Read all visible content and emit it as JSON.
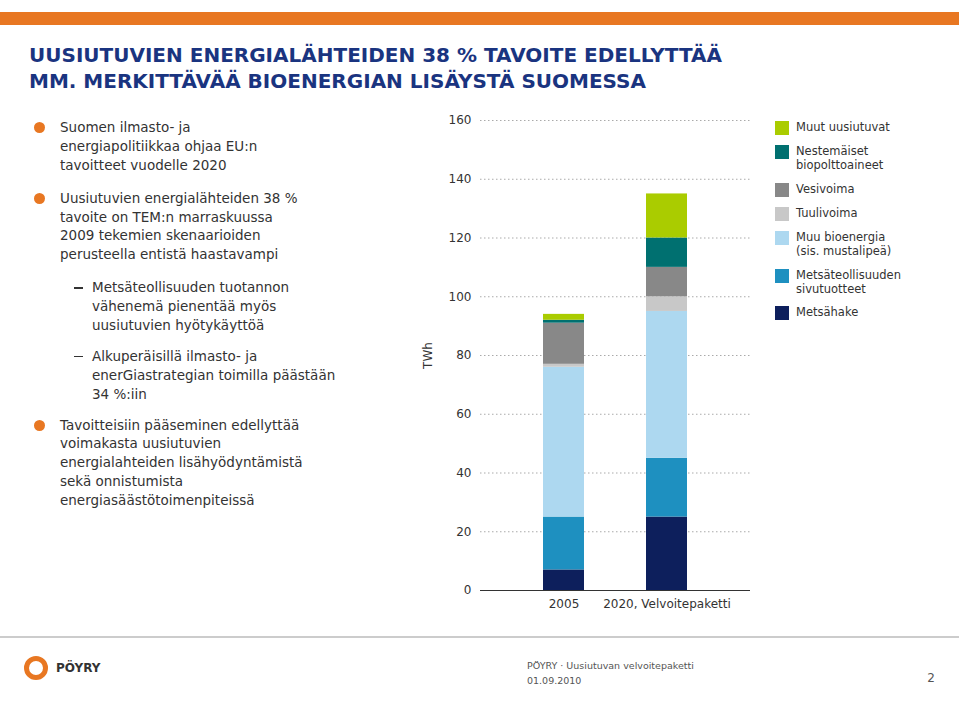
{
  "chart_data": {
    "type": "bar",
    "stacked": true,
    "title": "UUSIUTUVIEN ENERGIALÄHTEIDEN 38 % TAVOITE EDELLYTTÄÄ\nMM. MERKITTÄVÄÄ BIOENERGIAN LISÄYSTÄ SUOMESSA",
    "annotations": [
      "Suomen ilmasto- ja\nenergiapolitiikkaa ohjaa EU:n\ntavoitteet vuodelle 2020",
      "Uusiutuvien energialähteiden 38 %\ntavoite on TEM:n marraskuussa\n2009 tekemien skenaarioiden\nperusteella entistä haastavampi",
      "Metsäteollisuuden tuotannon\nvähenemä pienentää myös\nuusiutuvien hyötykäyttöä",
      "Alkuperäisillä ilmasto- ja\nenerGiastrategian toimilla päästään\n34 %:iin",
      "Tavoitteisiin pääseminen edellyttää\nvoimakasta uusiutuvien\nenergialahteiden lisähyödyntämistä\nsekä onnistumista\nenergiasäästötoimenpiteissä",
      "PÖYRY · Uusiutuvan velvoitepaketti",
      "01.09.2010",
      "2",
      "PÖYRY"
    ],
    "categories": [
      "2005",
      "2020, Velvoitepaketti"
    ],
    "series": [
      {
        "name": "Metsähake",
        "color": "#0d1f5c",
        "values": [
          7,
          25
        ]
      },
      {
        "name": "Metsäteollisuuden\nsivutuotteet",
        "color": "#1e90c0",
        "values": [
          18,
          20
        ]
      },
      {
        "name": "Muu bioenergia\n(sis. mustalipeä)",
        "color": "#add8f0",
        "values": [
          51,
          50
        ]
      },
      {
        "name": "Tuulivoima",
        "color": "#c8c8c8",
        "values": [
          1,
          5
        ]
      },
      {
        "name": "Vesivoima",
        "color": "#888888",
        "values": [
          14,
          10
        ]
      },
      {
        "name": "Nestemäiset\nbiopolttoaineet",
        "color": "#007070",
        "values": [
          1,
          10
        ]
      },
      {
        "name": "Muut uusiutuvat",
        "color": "#aacc00",
        "values": [
          2,
          15
        ]
      }
    ],
    "ylabel": "TWh",
    "ylim": [
      0,
      160
    ],
    "yticks": [
      0,
      20,
      40,
      60,
      80,
      100,
      120,
      140,
      160
    ],
    "grid": true,
    "legend": "right"
  }
}
